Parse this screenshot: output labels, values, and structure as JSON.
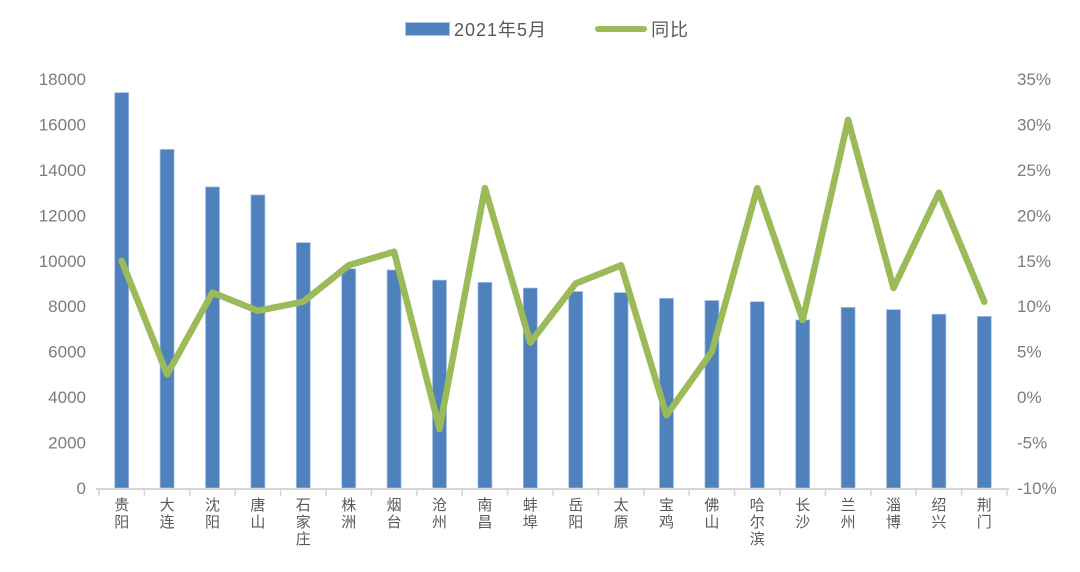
{
  "legend": {
    "items": [
      {
        "label": "2021年5月",
        "swatch": "bar-swatch"
      },
      {
        "label": "同比",
        "swatch": "line-swatch"
      }
    ]
  },
  "chart_data": {
    "type": "bar",
    "combo": "bar + line, dual y-axis",
    "title": "",
    "categories": [
      "贵阳",
      "大连",
      "沈阳",
      "唐山",
      "石家庄",
      "株洲",
      "烟台",
      "沧州",
      "南昌",
      "蚌埠",
      "岳阳",
      "太原",
      "宝鸡",
      "佛山",
      "哈尔滨",
      "长沙",
      "兰州",
      "淄博",
      "绍兴",
      "荆门"
    ],
    "series": [
      {
        "name": "2021年5月",
        "type": "bar",
        "yaxis": "left",
        "values": [
          17400,
          14900,
          13250,
          12900,
          10800,
          9650,
          9600,
          9150,
          9050,
          8800,
          8650,
          8600,
          8350,
          8250,
          8200,
          7400,
          7950,
          7850,
          7650,
          7550
        ]
      },
      {
        "name": "同比",
        "type": "line",
        "yaxis": "right",
        "unit": "%",
        "values": [
          15,
          2.5,
          11.5,
          9.5,
          10.5,
          14.5,
          16,
          -3.5,
          23,
          6,
          12.5,
          14.5,
          -2,
          5,
          23,
          8.5,
          30.5,
          12,
          22.5,
          10.5
        ]
      }
    ],
    "left_axis": {
      "range": [
        0,
        18000
      ],
      "step": 2000,
      "tick_labels": [
        "0",
        "2000",
        "4000",
        "6000",
        "8000",
        "10000",
        "12000",
        "14000",
        "16000",
        "18000"
      ]
    },
    "right_axis": {
      "range": [
        -10,
        35
      ],
      "step": 5,
      "tick_labels": [
        "-10%",
        "-5%",
        "0%",
        "5%",
        "10%",
        "15%",
        "20%",
        "25%",
        "30%",
        "35%"
      ]
    },
    "grid": false,
    "legend_position": "top-center"
  },
  "colors": {
    "bar": "#4f81bd",
    "bar_border": "#a9c3e2",
    "line": "#9bbb59",
    "axis_line": "#d6d6d6",
    "tick_text": "#7c7c7c",
    "category_text": "#595959",
    "background": "#ffffff"
  }
}
